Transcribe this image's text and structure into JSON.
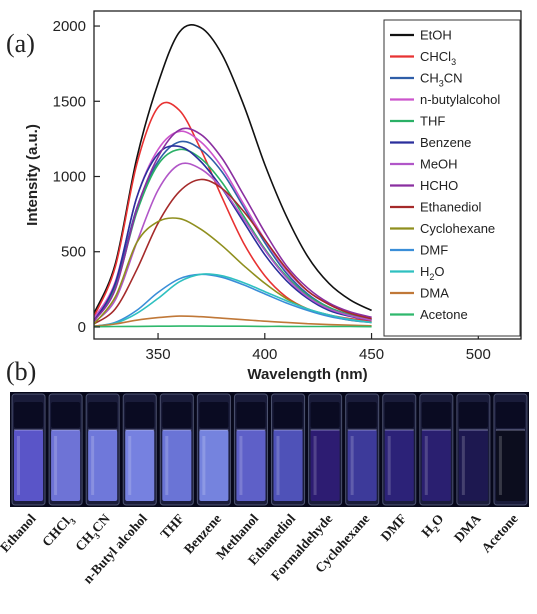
{
  "panels": {
    "a": "(a)",
    "b": "(b)"
  },
  "chart_data": {
    "type": "line",
    "xlabel": "Wavelength (nm)",
    "ylabel": "Intensity (a.u.)",
    "xlim": [
      320,
      520
    ],
    "ylim": [
      -80,
      2100
    ],
    "xticks": [
      350,
      400,
      450,
      500
    ],
    "yticks": [
      0,
      500,
      1000,
      1500,
      2000
    ],
    "x": [
      320,
      330,
      340,
      350,
      360,
      370,
      380,
      390,
      400,
      410,
      420,
      430,
      440,
      450
    ],
    "legend_position": "top-right",
    "series": [
      {
        "name": "EtOH",
        "color": "#111111",
        "values": [
          90,
          420,
          1120,
          1620,
          1960,
          1990,
          1810,
          1480,
          1080,
          740,
          470,
          290,
          180,
          110
        ]
      },
      {
        "name": "CHCl3",
        "color": "#e83232",
        "values": [
          70,
          400,
          1080,
          1460,
          1440,
          1180,
          860,
          560,
          340,
          200,
          120,
          80,
          55,
          40
        ]
      },
      {
        "name": "CH3CN",
        "color": "#2f5ea8",
        "values": [
          50,
          280,
          790,
          1100,
          1230,
          1180,
          1030,
          800,
          560,
          360,
          220,
          130,
          80,
          50
        ]
      },
      {
        "name": "n-butylalcohol",
        "color": "#cc55cc",
        "values": [
          60,
          300,
          860,
          1180,
          1300,
          1230,
          1060,
          820,
          580,
          380,
          240,
          150,
          90,
          60
        ]
      },
      {
        "name": "THF",
        "color": "#2ab066",
        "values": [
          40,
          260,
          760,
          1080,
          1180,
          1120,
          960,
          740,
          520,
          340,
          210,
          130,
          80,
          50
        ]
      },
      {
        "name": "Benzene",
        "color": "#2a2f9c",
        "values": [
          40,
          290,
          860,
          1150,
          1200,
          1100,
          920,
          700,
          480,
          310,
          190,
          110,
          70,
          45
        ]
      },
      {
        "name": "MeOH",
        "color": "#b156c8",
        "values": [
          30,
          180,
          560,
          910,
          1080,
          1050,
          920,
          720,
          510,
          330,
          200,
          120,
          75,
          45
        ]
      },
      {
        "name": "HCHO",
        "color": "#8a2fa0",
        "values": [
          40,
          250,
          780,
          1130,
          1310,
          1280,
          1120,
          880,
          630,
          410,
          260,
          160,
          100,
          65
        ]
      },
      {
        "name": "Ethanediol",
        "color": "#a52a2a",
        "values": [
          20,
          120,
          380,
          690,
          900,
          980,
          920,
          770,
          580,
          390,
          240,
          150,
          90,
          55
        ]
      },
      {
        "name": "Cyclohexane",
        "color": "#8f8f1e",
        "values": [
          20,
          200,
          560,
          700,
          720,
          650,
          540,
          410,
          290,
          190,
          120,
          75,
          45,
          30
        ]
      },
      {
        "name": "DMF",
        "color": "#3a8ed8",
        "values": [
          5,
          30,
          110,
          230,
          320,
          350,
          330,
          280,
          220,
          160,
          110,
          70,
          45,
          30
        ]
      },
      {
        "name": "H2O",
        "color": "#2fc0c0",
        "values": [
          5,
          25,
          90,
          190,
          300,
          350,
          340,
          295,
          235,
          175,
          120,
          80,
          50,
          30
        ]
      },
      {
        "name": "DMA",
        "color": "#c07838",
        "values": [
          5,
          20,
          45,
          62,
          72,
          68,
          58,
          48,
          38,
          30,
          22,
          16,
          12,
          8
        ]
      },
      {
        "name": "Acetone",
        "color": "#2fb86c",
        "values": [
          2,
          3,
          4,
          5,
          6,
          6,
          5,
          5,
          4,
          4,
          3,
          3,
          3,
          2
        ]
      }
    ]
  },
  "legend_items": [
    {
      "text": "EtOH"
    },
    {
      "text": "CHCl",
      "sub": "3"
    },
    {
      "text": "CH",
      "sub": "3",
      "tail": "CN"
    },
    {
      "text": "n-butylalcohol"
    },
    {
      "text": "THF"
    },
    {
      "text": "Benzene"
    },
    {
      "text": "MeOH"
    },
    {
      "text": "HCHO"
    },
    {
      "text": "Ethanediol"
    },
    {
      "text": "Cyclohexane"
    },
    {
      "text": "DMF"
    },
    {
      "text": "H",
      "sub": "2",
      "tail": "O"
    },
    {
      "text": "DMA"
    },
    {
      "text": "Acetone"
    }
  ],
  "vials": [
    {
      "label": "Ethanol",
      "glow": "#5a55c8"
    },
    {
      "label": "CHCl",
      "sub": "3",
      "glow": "#6e73d6"
    },
    {
      "label": "CH",
      "sub": "3",
      "tail": "CN",
      "glow": "#6f78da"
    },
    {
      "label": "n-Butyl alcohol",
      "glow": "#7681e0"
    },
    {
      "label": "THF",
      "glow": "#6a74d6"
    },
    {
      "label": "Benzene",
      "glow": "#7583de"
    },
    {
      "label": "Methanol",
      "glow": "#5e60c8"
    },
    {
      "label": "Ethanediol",
      "glow": "#4f52b8"
    },
    {
      "label": "Formaldehyde",
      "glow": "#2d1c72"
    },
    {
      "label": "Cyclohexane",
      "glow": "#3d3a9a"
    },
    {
      "label": "DMF",
      "glow": "#2c2278"
    },
    {
      "label": "H",
      "sub": "2",
      "tail": "O",
      "glow": "#2a1f70"
    },
    {
      "label": "DMA",
      "glow": "#1d1850"
    },
    {
      "label": "Acetone",
      "glow": "#0c0d1e"
    }
  ]
}
